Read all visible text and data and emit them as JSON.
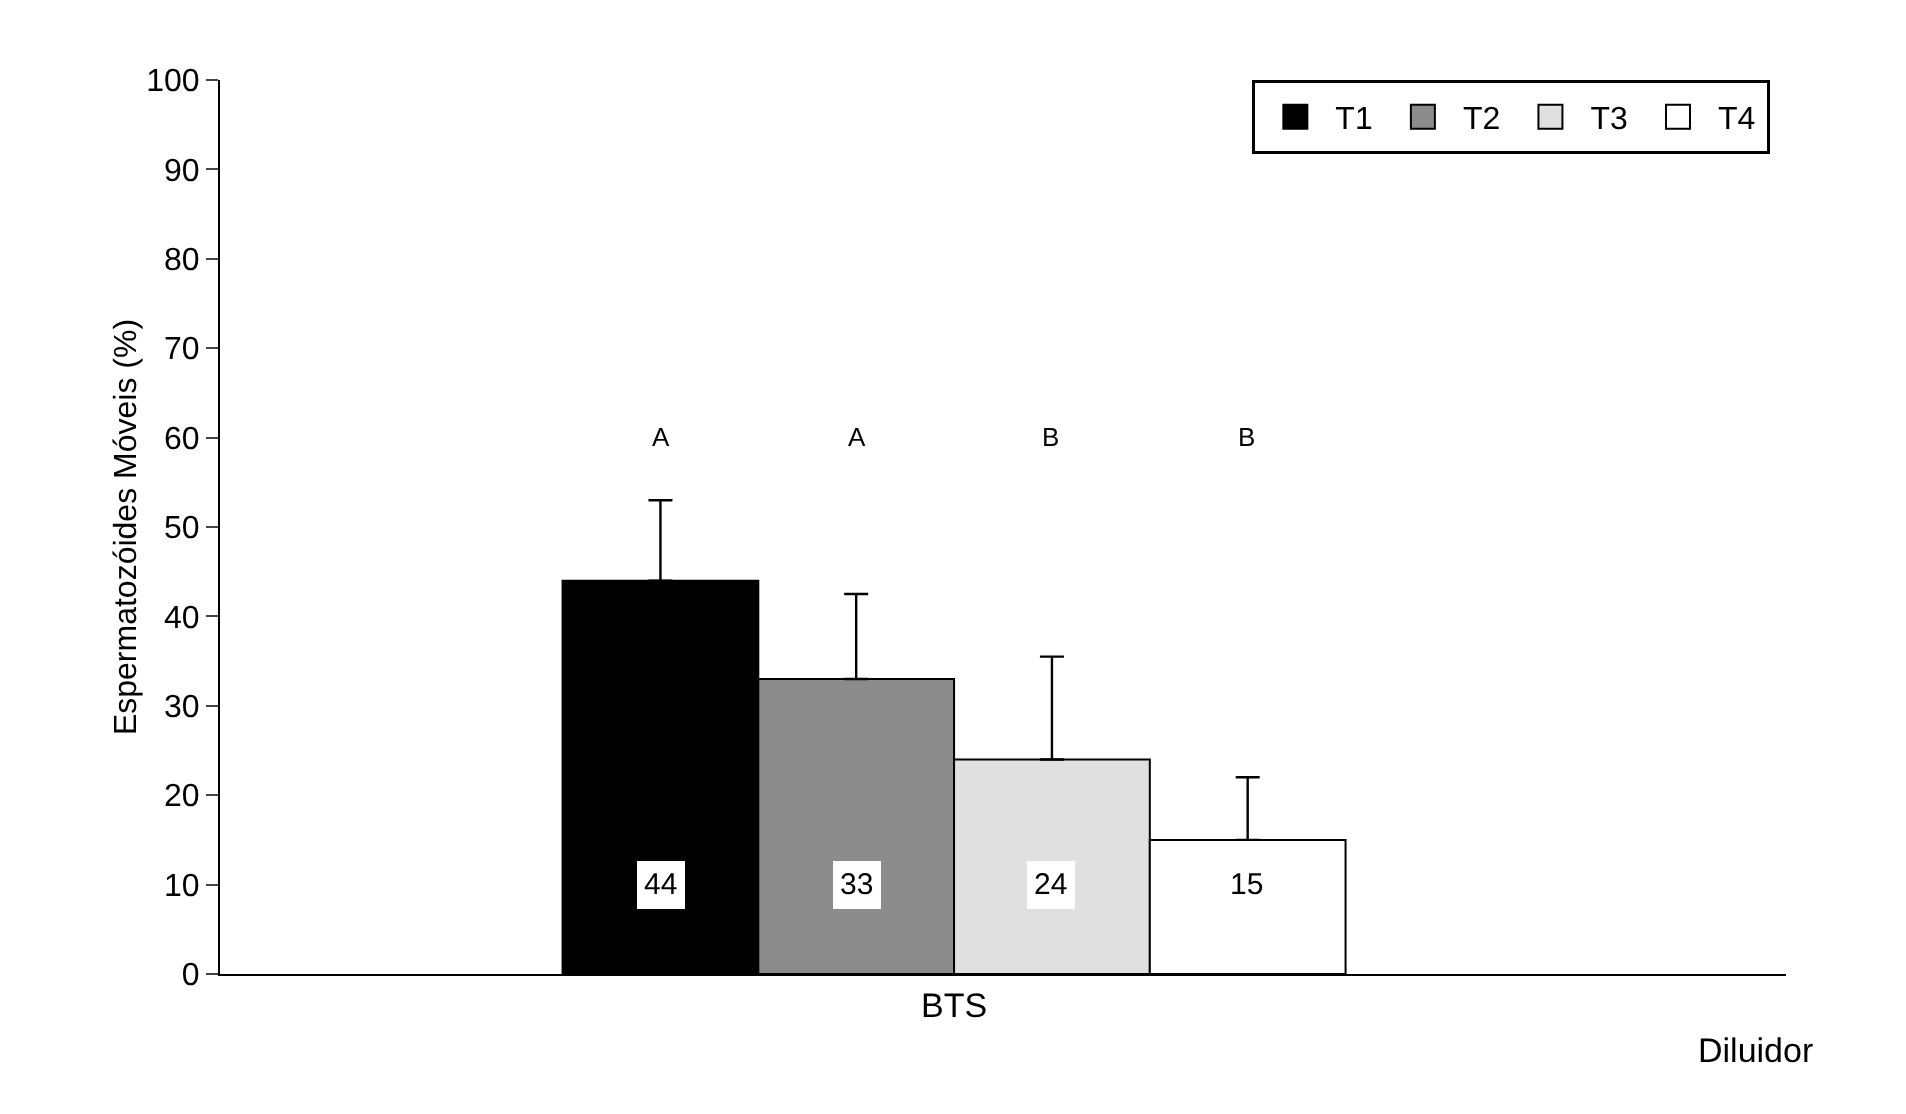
{
  "chart_data": {
    "type": "bar",
    "xlabel": "Diluidor",
    "ylabel": "Espermatozóides Móveis (%)",
    "categories": [
      "BTS"
    ],
    "series": [
      {
        "name": "T1",
        "color": "#000000",
        "values": [
          44
        ],
        "errors": [
          [
            44,
            53
          ]
        ]
      },
      {
        "name": "T2",
        "color": "#8c8c8c",
        "values": [
          33
        ],
        "errors": [
          [
            33,
            42.5
          ]
        ]
      },
      {
        "name": "T3",
        "color": "#e0e0e0",
        "values": [
          24
        ],
        "errors": [
          [
            24,
            35.5
          ]
        ]
      },
      {
        "name": "T4",
        "color": "#ffffff",
        "values": [
          15
        ],
        "errors": [
          [
            15,
            22
          ]
        ]
      }
    ],
    "data_labels": true,
    "annotations": [
      "A",
      "A",
      "B",
      "B"
    ],
    "ylim": [
      0,
      100
    ],
    "yticks": [
      0,
      10,
      20,
      30,
      40,
      50,
      60,
      70,
      80,
      90,
      100
    ],
    "grid": false,
    "legend": "top right"
  }
}
